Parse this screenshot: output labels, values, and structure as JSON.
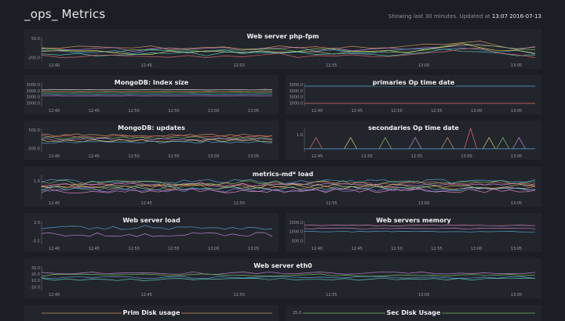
{
  "header": {
    "title": "_ops_ Metrics",
    "status_prefix": "Showing last 30 minutes. Updated at",
    "updated_at": "13:07 2016-07-13"
  },
  "panels": [
    {
      "id": "p1",
      "title": "Web server php-fpm",
      "x_ticks": [
        "12:40",
        "12:45",
        "12:50",
        "12:55",
        "13:00",
        "13:05"
      ],
      "y_ticks": [
        "50.0",
        "-200.0"
      ],
      "series_colors": [
        "#d89b5b",
        "#c58cd9",
        "#7bc862",
        "#58a7d4",
        "#e2d26a",
        "#5fd0c2",
        "#e06d6d"
      ]
    },
    {
      "id": "p2",
      "title": "MongoDB: Index size",
      "x_ticks": [
        "12:40",
        "12:45",
        "12:50",
        "12:55",
        "13:00",
        "13:05"
      ],
      "y_ticks": [
        "3000.0",
        "3000.0",
        "3000.0",
        "3000.0"
      ],
      "series_colors": [
        "#e6e6e6",
        "#d89b5b",
        "#7bc862",
        "#58a7d4",
        "#c58cd9"
      ]
    },
    {
      "id": "p3",
      "title": "primaries Op time date",
      "x_ticks": [
        "12:40",
        "12:45",
        "12:50",
        "12:55",
        "13:00",
        "13:05"
      ],
      "y_ticks": [
        "3000.0",
        "3000.0",
        "3000.0",
        "3000.0"
      ],
      "series_colors": [
        "#58a7d4",
        "#e06d6d"
      ]
    },
    {
      "id": "p4",
      "title": "MongoDB: updates",
      "x_ticks": [
        "12:40",
        "12:45",
        "12:50",
        "12:55",
        "13:00",
        "13:05"
      ],
      "y_ticks": [
        "500.0",
        "-500.0"
      ],
      "series_colors": [
        "#d89b5b",
        "#e06d6d",
        "#7bc862",
        "#c58cd9",
        "#e2d26a",
        "#58a7d4"
      ]
    },
    {
      "id": "p5",
      "title": "secondaries Op time date",
      "x_ticks": [
        "12:45",
        "12:50",
        "12:55",
        "13:00",
        "13:05"
      ],
      "y_ticks": [
        "1.0"
      ],
      "series_colors": [
        "#e06d6d",
        "#e2d26a",
        "#7bc862",
        "#c58cd9",
        "#d89b5b"
      ]
    },
    {
      "id": "p6",
      "title": "metrics-md* load",
      "x_ticks": [
        "12:40",
        "12:45",
        "12:50",
        "12:55",
        "13:00",
        "13:05"
      ],
      "y_ticks": [
        "1.0"
      ],
      "series_colors": [
        "#58a7d4",
        "#7bc862",
        "#e06d6d",
        "#c58cd9",
        "#e2d26a",
        "#d89b5b",
        "#5fd0c2",
        "#8f8ff0",
        "#e68cc4"
      ]
    },
    {
      "id": "p7",
      "title": "Web server load",
      "x_ticks": [
        "12:40",
        "12:45",
        "12:50",
        "12:55",
        "13:00",
        "13:05"
      ],
      "y_ticks": [
        "2.0",
        "-0.5"
      ],
      "series_colors": [
        "#58a7d4",
        "#c58cd9"
      ]
    },
    {
      "id": "p8",
      "title": "Web servers memory",
      "x_ticks": [
        "12:40",
        "12:45",
        "12:50",
        "12:55",
        "13:00",
        "13:05"
      ],
      "y_ticks": [
        "1500.0",
        "1000.0",
        "500.0"
      ],
      "series_colors": [
        "#e68cc4",
        "#c58cd9",
        "#58a7d4"
      ]
    },
    {
      "id": "p9",
      "title": "Web server eth0",
      "x_ticks": [
        "12:40",
        "12:45",
        "12:50",
        "12:55",
        "13:00",
        "13:05"
      ],
      "y_ticks": [
        "30.0",
        "20.0",
        "10.0",
        "-10.0"
      ],
      "series_colors": [
        "#c58cd9",
        "#7bc862",
        "#58a7d4",
        "#5fd0c2"
      ]
    },
    {
      "id": "p10",
      "title": "Prim Disk usage",
      "x_ticks": [],
      "y_ticks": [],
      "series_colors": [
        "#d89b5b"
      ]
    },
    {
      "id": "p11",
      "title": "Sec Disk Usage",
      "x_ticks": [],
      "y_ticks": [
        "25.0"
      ],
      "series_colors": [
        "#7bc862"
      ]
    }
  ]
}
